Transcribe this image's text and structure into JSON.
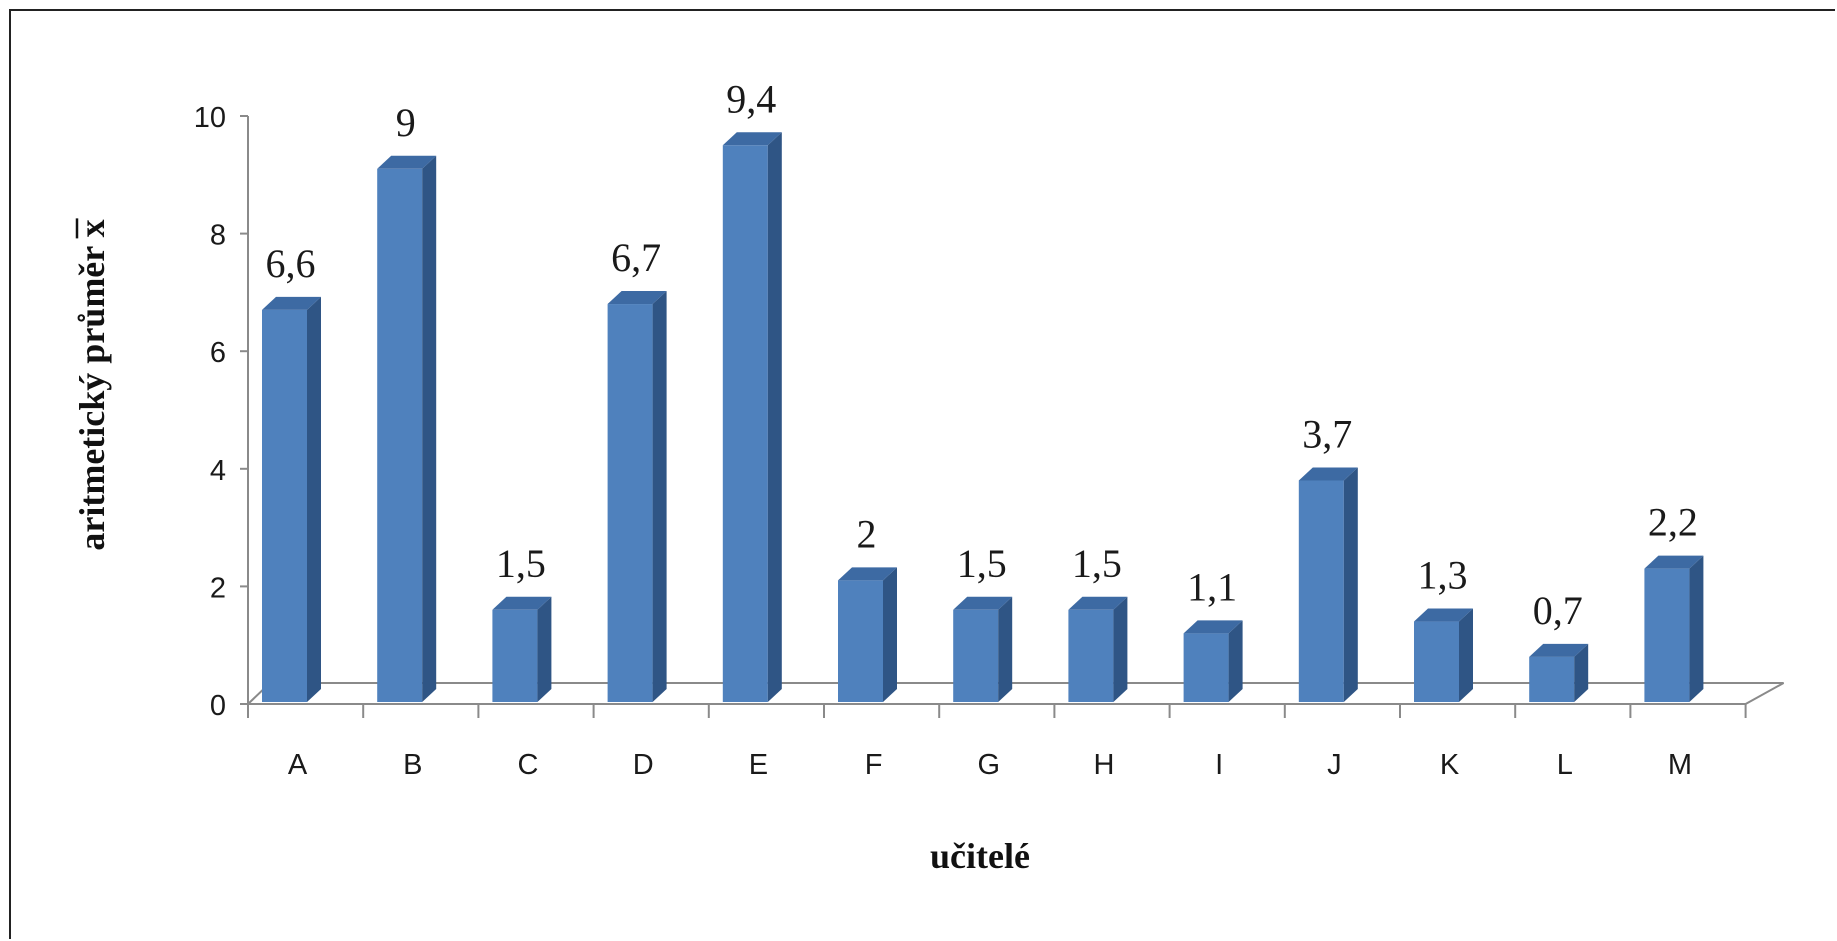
{
  "chart_data": {
    "type": "bar",
    "title": "",
    "xlabel": "učitelé",
    "ylabel": "aritmetický průměr x",
    "ylabel_overbar_char": "x",
    "categories": [
      "A",
      "B",
      "C",
      "D",
      "E",
      "F",
      "G",
      "H",
      "I",
      "J",
      "K",
      "L",
      "M"
    ],
    "values": [
      6.6,
      9,
      1.5,
      6.7,
      9.4,
      2,
      1.5,
      1.5,
      1.1,
      3.7,
      1.3,
      0.7,
      2.2
    ],
    "data_labels": [
      "6,6",
      "9",
      "1,5",
      "6,7",
      "9,4",
      "2",
      "1,5",
      "1,5",
      "1,1",
      "3,7",
      "1,3",
      "0,7",
      "2,2"
    ],
    "yticks": [
      "0",
      "2",
      "4",
      "6",
      "8",
      "10"
    ],
    "ylim": [
      0,
      10
    ],
    "grid": false,
    "legend": "none",
    "style": "3d-column",
    "colors": {
      "bar_front": "#4f81bd",
      "bar_side": "#2f5585",
      "bar_top": "#3d6aa3",
      "axis": "#8a8a8a"
    }
  }
}
